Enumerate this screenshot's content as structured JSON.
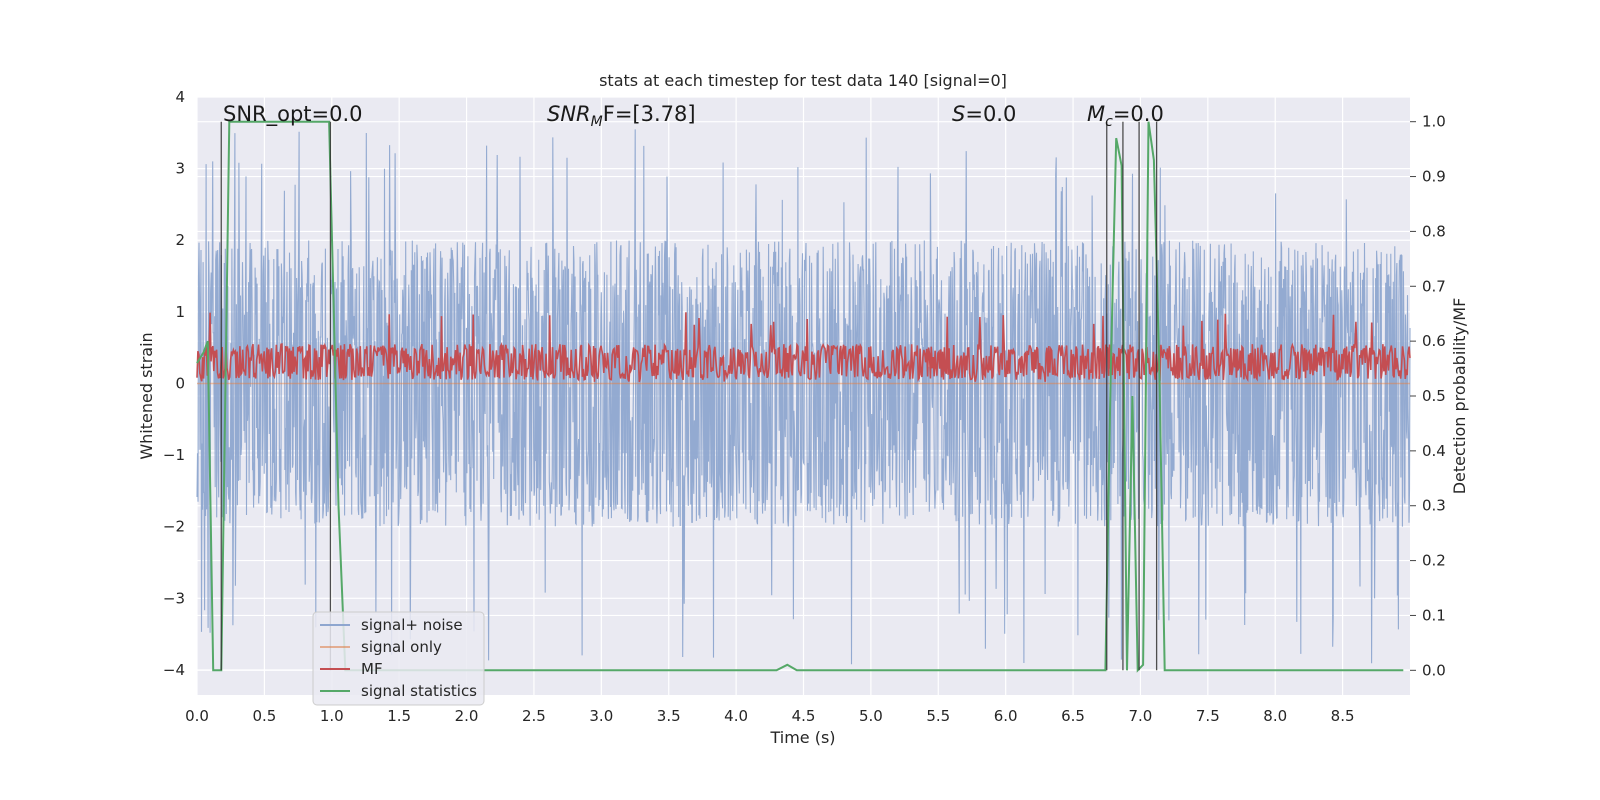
{
  "chart_data": {
    "type": "line",
    "title": "stats at each timestep for test data 140 [signal=0]",
    "xlabel": "Time (s)",
    "ylabel_left": "Whitened strain",
    "ylabel_right": "Detection probability/MF",
    "xlim": [
      0.0,
      9.0
    ],
    "ylim_left": [
      -4.35,
      4.0
    ],
    "ylim_right": [
      -0.045,
      1.045
    ],
    "xticks": [
      "0.0",
      "0.5",
      "1.0",
      "1.5",
      "2.0",
      "2.5",
      "3.0",
      "3.5",
      "4.0",
      "4.5",
      "5.0",
      "5.5",
      "6.0",
      "6.5",
      "7.0",
      "7.5",
      "8.0",
      "8.5"
    ],
    "xtick_values": [
      0.0,
      0.5,
      1.0,
      1.5,
      2.0,
      2.5,
      3.0,
      3.5,
      4.0,
      4.5,
      5.0,
      5.5,
      6.0,
      6.5,
      7.0,
      7.5,
      8.0,
      8.5
    ],
    "yticks_left": [
      "4",
      "3",
      "2",
      "1",
      "0",
      "−1",
      "−2",
      "−3",
      "−4"
    ],
    "ytick_values_left": [
      4,
      3,
      2,
      1,
      0,
      -1,
      -2,
      -3,
      -4
    ],
    "yticks_right": [
      "1.0",
      "0.9",
      "0.8",
      "0.7",
      "0.6",
      "0.5",
      "0.4",
      "0.3",
      "0.2",
      "0.1",
      "0.0"
    ],
    "ytick_values_right": [
      1.0,
      0.9,
      0.8,
      0.7,
      0.6,
      0.5,
      0.4,
      0.3,
      0.2,
      0.1,
      0.0
    ],
    "grid": true,
    "legend_position": "lower-left",
    "annotations": {
      "snr_opt": {
        "prefix": "SNR_opt=",
        "value": "0.0"
      },
      "snr_mf": {
        "var": "SNR",
        "sub": "M",
        "rest": "F=[3.78]"
      },
      "s": {
        "var": "S",
        "rest": "=0.0"
      },
      "mc": {
        "var": "M",
        "sub": "c",
        "rest": "=0.0"
      }
    },
    "series": [
      {
        "name": "signal+ noise",
        "color": "#8ea6cf",
        "axis": "left",
        "kind": "noise",
        "envelope": {
          "center": 0.0,
          "typical_upper": 2.0,
          "typical_lower": -2.0,
          "peak_upper": 3.55,
          "peak_lower": -4.0
        }
      },
      {
        "name": "signal only",
        "color": "#dd8452",
        "axis": "left",
        "kind": "flat",
        "value": 0.0
      },
      {
        "name": "MF",
        "color": "#c44e52",
        "axis": "left",
        "kind": "noise",
        "envelope": {
          "center": 0.3,
          "typical_upper": 0.55,
          "typical_lower": 0.05,
          "peak_upper": 1.0,
          "peak_lower": 0.02
        }
      },
      {
        "name": "signal statistics",
        "color": "#55a868",
        "axis": "right",
        "kind": "line",
        "x": [
          0.0,
          0.05,
          0.08,
          0.12,
          0.18,
          0.24,
          0.3,
          0.6,
          0.98,
          1.02,
          1.05,
          1.1,
          1.2,
          2.0,
          4.0,
          4.3,
          4.38,
          4.45,
          5.0,
          6.0,
          6.74,
          6.78,
          6.82,
          6.86,
          6.9,
          6.94,
          6.98,
          7.02,
          7.06,
          7.1,
          7.14,
          7.18,
          8.0,
          8.95
        ],
        "y": [
          0.56,
          0.58,
          0.6,
          0.0,
          0.0,
          1.0,
          1.0,
          1.0,
          1.0,
          0.6,
          0.3,
          0.0,
          0.0,
          0.0,
          0.0,
          0.0,
          0.01,
          0.0,
          0.0,
          0.0,
          0.0,
          0.55,
          0.97,
          0.92,
          0.0,
          0.5,
          0.0,
          0.01,
          1.0,
          0.93,
          0.55,
          0.0,
          0.0,
          0.0
        ]
      }
    ],
    "vlines": [
      0.18,
      0.99,
      6.75,
      6.87,
      6.99,
      7.12
    ]
  }
}
